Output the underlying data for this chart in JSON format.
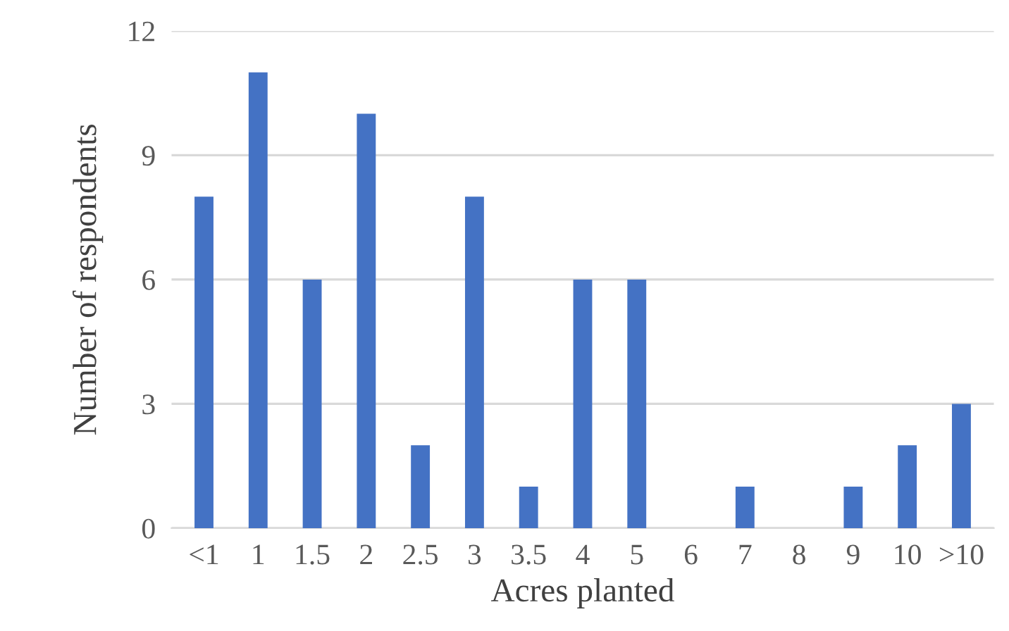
{
  "chart_data": {
    "type": "bar",
    "xlabel": "Acres planted",
    "ylabel": "Number of respondents",
    "categories": [
      "<1",
      "1",
      "1.5",
      "2",
      "2.5",
      "3",
      "3.5",
      "4",
      "5",
      "6",
      "7",
      "8",
      "9",
      "10",
      ">10"
    ],
    "values": [
      8,
      11,
      6,
      10,
      2,
      8,
      1,
      6,
      6,
      0,
      1,
      0,
      1,
      2,
      3
    ],
    "color": "#4472c4",
    "ylim": [
      0,
      12
    ],
    "yticks": [
      0,
      3,
      6,
      9,
      12
    ],
    "grid": "y"
  }
}
